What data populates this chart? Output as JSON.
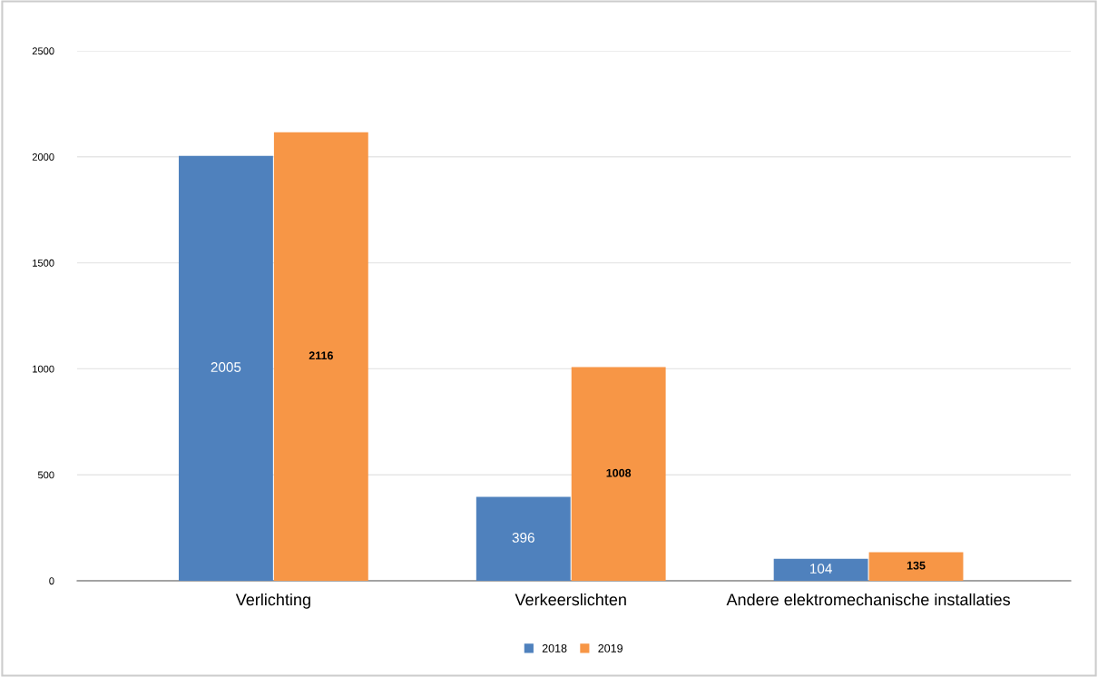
{
  "chart_data": {
    "type": "bar",
    "categories": [
      "Verlichting",
      "Verkeerslichten",
      "Andere elektromechanische installaties"
    ],
    "series": [
      {
        "name": "2018",
        "color": "#4f81bd",
        "values": [
          2005,
          396,
          104
        ]
      },
      {
        "name": "2019",
        "color": "#f79646",
        "values": [
          2116,
          1008,
          135
        ]
      }
    ],
    "ylim": [
      0,
      2500
    ],
    "yticks": [
      0,
      500,
      1000,
      1500,
      2000,
      2500
    ],
    "grid": "y",
    "legend": "bottom",
    "data_labels": true
  }
}
